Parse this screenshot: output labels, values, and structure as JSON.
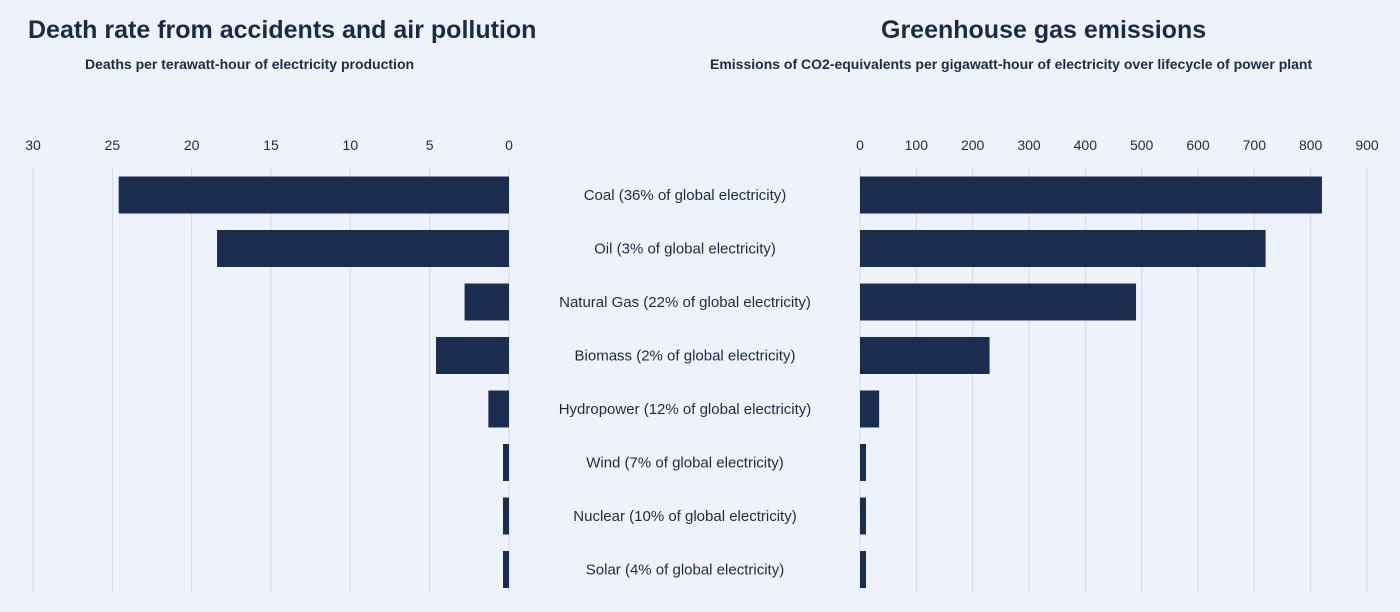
{
  "colors": {
    "background": "#eef3fb",
    "bar": "#1b2d4f",
    "text": "#1b2a48",
    "grid": "#d3d8e0"
  },
  "chart_data": [
    {
      "type": "bar",
      "orientation": "horizontal",
      "direction": "right-to-left",
      "title": "Death rate from accidents and air pollution",
      "subtitle": "Deaths per terawatt-hour of electricity production",
      "xlim": [
        0,
        30
      ],
      "ticks": [
        30,
        25,
        20,
        15,
        10,
        5,
        0
      ],
      "categories": [
        "Coal (36% of global electricity)",
        "Oil (3% of global electricity)",
        "Natural Gas (22% of global electricity)",
        "Biomass (2% of global electricity)",
        "Hydropower (12% of global electricity)",
        "Wind (7% of global electricity)",
        "Nuclear (10% of global electricity)",
        "Solar (4% of global electricity)"
      ],
      "values": [
        24.6,
        18.4,
        2.8,
        4.6,
        1.3,
        0.04,
        0.03,
        0.02
      ]
    },
    {
      "type": "bar",
      "orientation": "horizontal",
      "direction": "left-to-right",
      "title": "Greenhouse gas emissions",
      "subtitle": "Emissions of CO2-equivalents per gigawatt-hour of electricity over lifecycle of power plant",
      "xlim": [
        0,
        900
      ],
      "ticks": [
        0,
        100,
        200,
        300,
        400,
        500,
        600,
        700,
        800,
        900
      ],
      "categories": [
        "Coal (36% of global electricity)",
        "Oil (3% of global electricity)",
        "Natural Gas (22% of global electricity)",
        "Biomass (2% of global electricity)",
        "Hydropower (12% of global electricity)",
        "Wind (7% of global electricity)",
        "Nuclear (10% of global electricity)",
        "Solar (4% of global electricity)"
      ],
      "values": [
        820,
        720,
        490,
        230,
        34,
        4,
        3,
        5
      ]
    }
  ]
}
